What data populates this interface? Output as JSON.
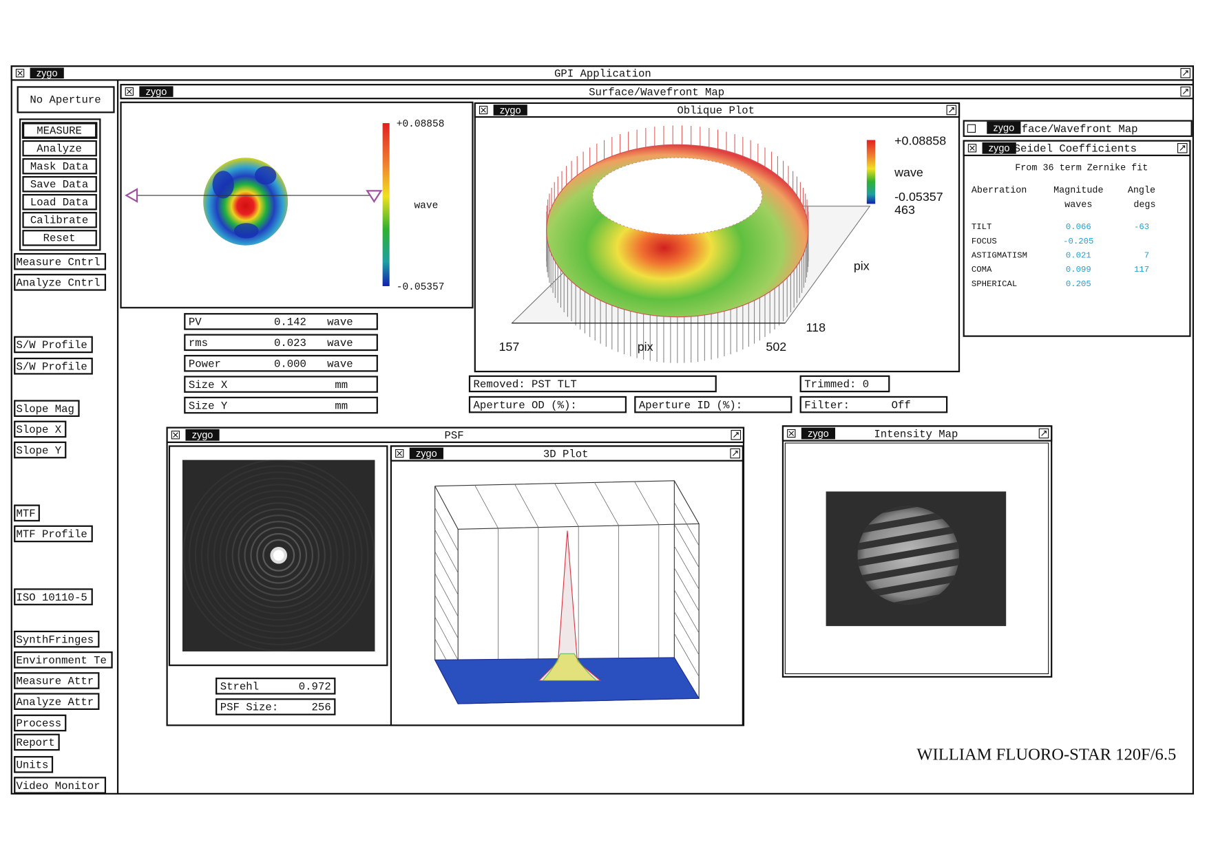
{
  "app_title": "GPI Application",
  "logo": "zygo",
  "no_aperture": "No Aperture",
  "buttons": [
    "MEASURE",
    "Analyze",
    "Mask Data",
    "Save Data",
    "Load Data",
    "Calibrate",
    "Reset"
  ],
  "sidebar": [
    "Measure Cntrl",
    "Analyze Cntrl",
    "S/W Profile",
    "S/W Profile",
    "Slope Mag",
    "Slope X",
    "Slope Y",
    "MTF",
    "MTF Profile",
    "ISO 10110-5",
    "SynthFringes",
    "Environment Te",
    "Measure Attr",
    "Analyze Attr",
    "Process",
    "Report",
    "Units",
    "Video Monitor"
  ],
  "surface": {
    "title": "Surface/Wavefront Map",
    "colorbar_max": "+0.08858",
    "colorbar_unit": "wave",
    "colorbar_min": "-0.05357"
  },
  "stats": [
    {
      "label": "PV",
      "value": "0.142",
      "unit": "wave"
    },
    {
      "label": "rms",
      "value": "0.023",
      "unit": "wave"
    },
    {
      "label": "Power",
      "value": "0.000",
      "unit": "wave"
    },
    {
      "label": "Size X",
      "unit": "mm"
    },
    {
      "label": "Size Y",
      "unit": "mm"
    }
  ],
  "oblique": {
    "title": "Oblique Plot",
    "scale_max": "+0.08858",
    "scale_unit": "wave",
    "scale_min": "-0.05357",
    "y_max": "463",
    "y_label": "pix",
    "y_min": "118",
    "x_min": "157",
    "x_label": "pix",
    "x_max": "502"
  },
  "status": {
    "removed": "Removed: PST TLT",
    "trimmed": "Trimmed:  0",
    "aperture_od": "Aperture OD (%):",
    "aperture_id": "Aperture ID (%):",
    "filter_label": "Filter:",
    "filter_value": "Off"
  },
  "seidel": {
    "back_title": "face/Wavefront Map",
    "title": "Seidel Coefficients",
    "subtitle": "From 36 term Zernike fit",
    "headers": {
      "aberration": "Aberration",
      "magnitude": [
        "Magnitude",
        "waves"
      ],
      "angle": [
        "Angle",
        "degs"
      ]
    },
    "rows": [
      {
        "name": "TILT",
        "magnitude": "0.066",
        "angle": "-63"
      },
      {
        "name": "FOCUS",
        "magnitude": "-0.205"
      },
      {
        "name": "ASTIGMATISM",
        "magnitude": "0.021",
        "angle": "7"
      },
      {
        "name": "COMA",
        "magnitude": "0.099",
        "angle": "117"
      },
      {
        "name": "SPHERICAL",
        "magnitude": "0.205"
      }
    ]
  },
  "psf": {
    "title": "PSF",
    "strehl_label": "Strehl",
    "strehl_value": "0.972",
    "size_label": "PSF Size:",
    "size_value": "256"
  },
  "plot3d": {
    "title": "3D Plot"
  },
  "intensity": {
    "title": "Intensity Map"
  },
  "caption": "WILLIAM FLUORO-STAR 120F/6.5"
}
